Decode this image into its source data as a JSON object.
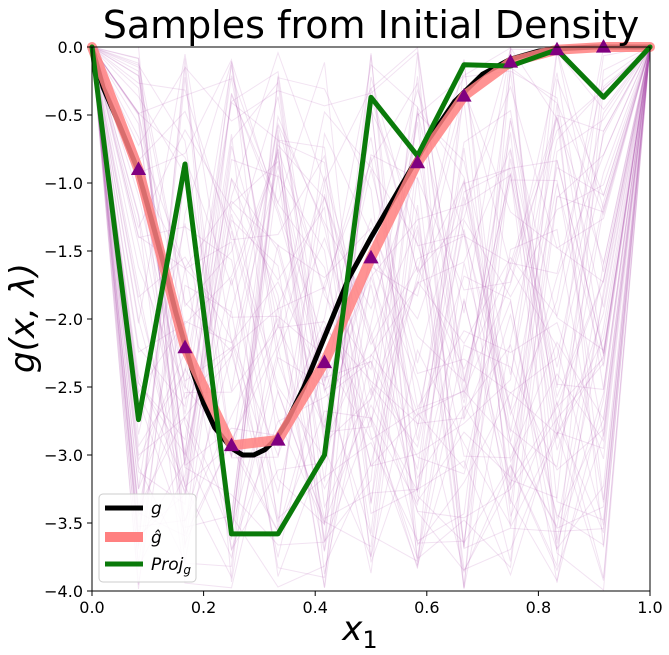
{
  "chart_data": {
    "type": "line",
    "title": "Samples from Initial Density",
    "xlabel": "x",
    "xlabel_sub": "1",
    "ylabel": "g(x, λ)",
    "xlim": [
      0.0,
      1.0
    ],
    "ylim": [
      -4.0,
      0.0
    ],
    "xticks": [
      0.0,
      0.2,
      0.4,
      0.6,
      0.8,
      1.0
    ],
    "xtick_labels": [
      "0.0",
      "0.2",
      "0.4",
      "0.6",
      "0.8",
      "1.0"
    ],
    "yticks": [
      0.0,
      -0.5,
      -1.0,
      -1.5,
      -2.0,
      -2.5,
      -3.0,
      -3.5,
      -4.0
    ],
    "ytick_labels": [
      "0.0",
      "−0.5",
      "−1.0",
      "−1.5",
      "−2.0",
      "−2.5",
      "−3.0",
      "−3.5",
      "−4.0"
    ],
    "grid": false,
    "legend_position": "lower-left",
    "legend": [
      {
        "label": "g",
        "color": "#000000"
      },
      {
        "label": "ĝ",
        "color": "#ff8080"
      },
      {
        "label": "Proj",
        "label_sub": "g",
        "color": "#0a7a0a"
      }
    ],
    "series": [
      {
        "name": "g",
        "color": "#000000",
        "x": [
          0.0,
          0.02,
          0.05,
          0.08,
          0.1,
          0.13,
          0.15,
          0.18,
          0.2,
          0.22,
          0.25,
          0.27,
          0.29,
          0.31,
          0.33,
          0.35,
          0.38,
          0.4,
          0.43,
          0.46,
          0.5,
          0.55,
          0.6,
          0.65,
          0.7,
          0.75,
          0.8,
          0.85,
          0.9,
          0.95,
          1.0
        ],
        "y": [
          0.0,
          -0.3,
          -0.58,
          -0.88,
          -1.17,
          -1.62,
          -1.95,
          -2.38,
          -2.62,
          -2.8,
          -2.95,
          -3.0,
          -3.0,
          -2.96,
          -2.88,
          -2.75,
          -2.5,
          -2.3,
          -2.0,
          -1.7,
          -1.4,
          -1.05,
          -0.7,
          -0.4,
          -0.2,
          -0.09,
          -0.03,
          -0.01,
          0.0,
          0.0,
          0.0
        ]
      },
      {
        "name": "ĝ",
        "color": "#ff8080",
        "x": [
          0.0,
          0.0833,
          0.1667,
          0.25,
          0.3333,
          0.4167,
          0.5,
          0.5833,
          0.6667,
          0.75,
          0.8333,
          0.9167,
          1.0
        ],
        "y": [
          0.0,
          -0.9,
          -2.21,
          -2.93,
          -2.89,
          -2.32,
          -1.55,
          -0.85,
          -0.36,
          -0.11,
          -0.02,
          0.0,
          0.0
        ]
      },
      {
        "name": "Proj_g",
        "color": "#0a7a0a",
        "x": [
          0.0,
          0.0833,
          0.1667,
          0.25,
          0.3333,
          0.4167,
          0.5,
          0.5833,
          0.6667,
          0.75,
          0.8333,
          0.9167,
          1.0
        ],
        "y": [
          0.0,
          -2.74,
          -0.86,
          -3.58,
          -3.58,
          -3.0,
          -0.37,
          -0.8,
          -0.13,
          -0.14,
          -0.02,
          -0.37,
          0.0
        ]
      }
    ],
    "markers": {
      "color": "#800080",
      "shape": "triangle",
      "x": [
        0.0833,
        0.1667,
        0.25,
        0.3333,
        0.4167,
        0.5,
        0.5833,
        0.6667,
        0.75,
        0.8333,
        0.9167
      ],
      "y": [
        -0.9,
        -2.21,
        -2.93,
        -2.89,
        -2.32,
        -1.55,
        -0.85,
        -0.36,
        -0.11,
        -0.02,
        0.0
      ]
    },
    "samples": {
      "color": "#b04fb0",
      "count": 70,
      "x": [
        0.0,
        0.0833,
        0.1667,
        0.25,
        0.3333,
        0.4167,
        0.5,
        0.5833,
        0.6667,
        0.75,
        0.8333,
        0.9167,
        1.0
      ]
    }
  }
}
